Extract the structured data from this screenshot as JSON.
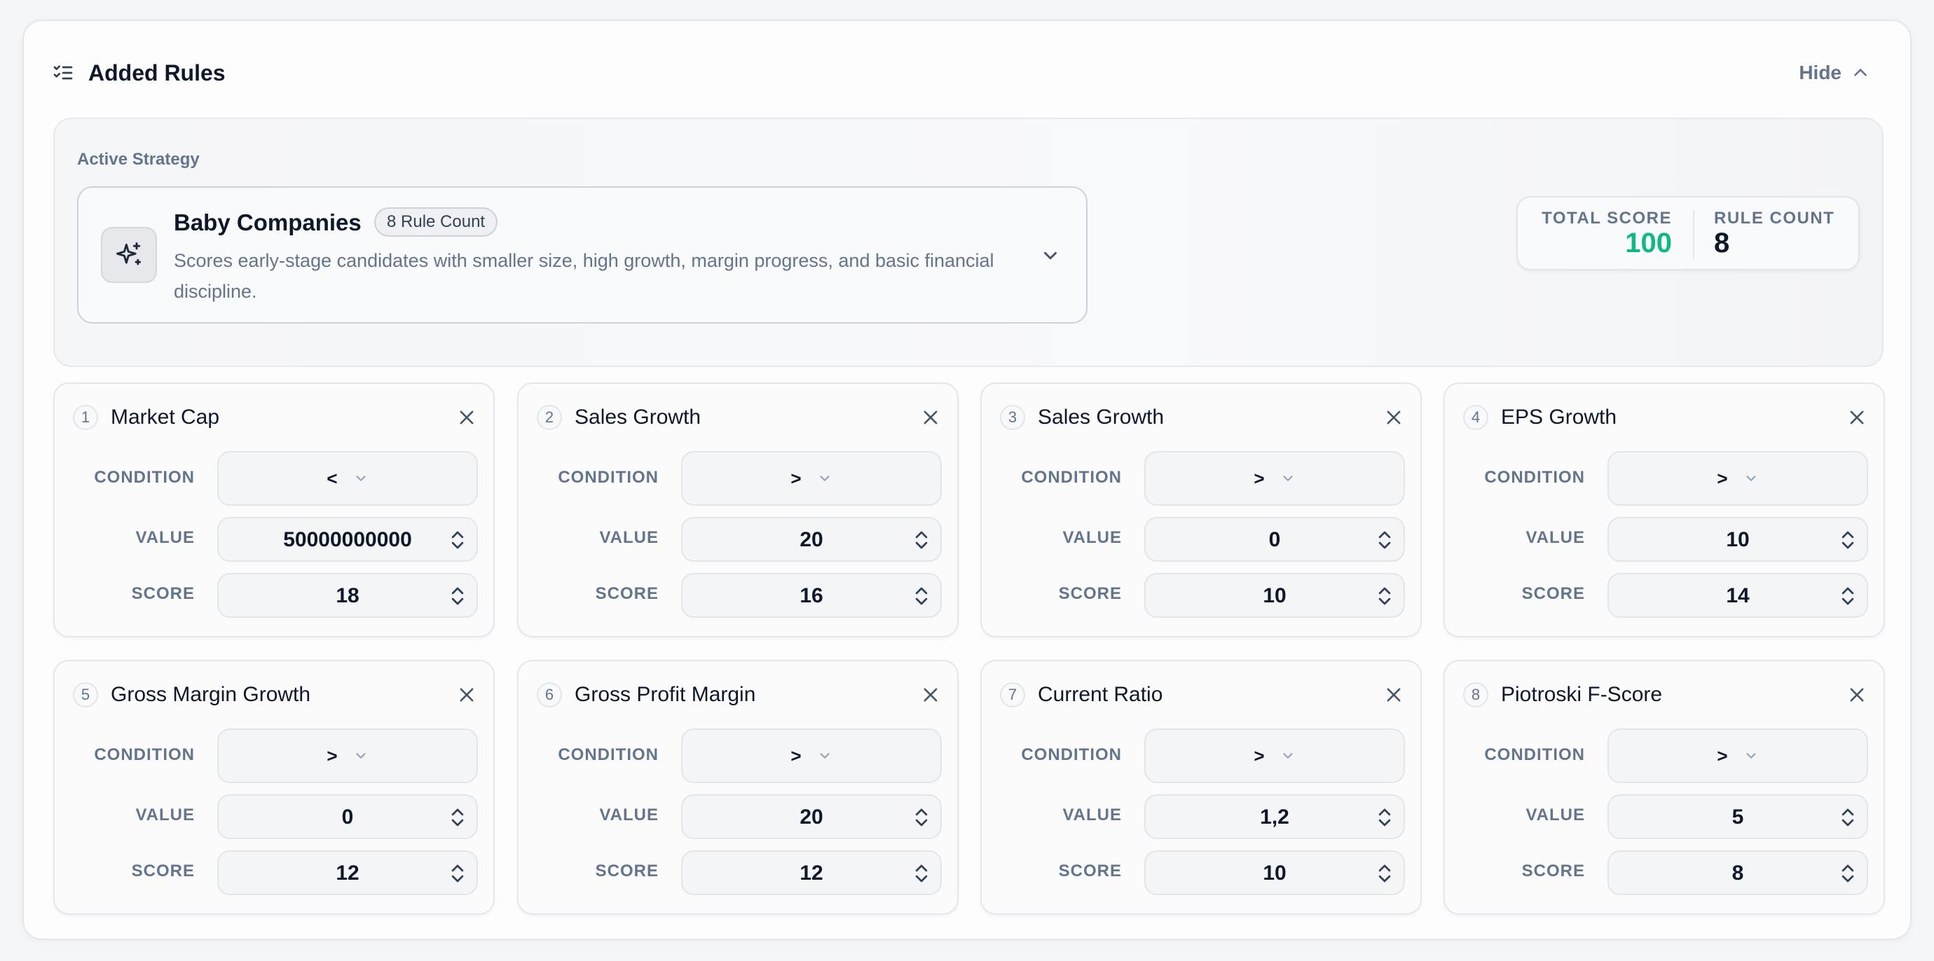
{
  "header": {
    "title": "Added Rules",
    "hide_label": "Hide"
  },
  "strategy": {
    "section_label": "Active Strategy",
    "name": "Baby Companies",
    "badge": "8 Rule Count",
    "description": "Scores early-stage candidates with smaller size, high growth, margin progress, and basic financial discipline."
  },
  "summary": {
    "total_score_label": "TOTAL SCORE",
    "total_score_value": "100",
    "rule_count_label": "RULE COUNT",
    "rule_count_value": "8"
  },
  "labels": {
    "condition": "CONDITION",
    "value": "VALUE",
    "score": "SCORE"
  },
  "rules": [
    {
      "num": "1",
      "name": "Market Cap",
      "condition": "<",
      "value": "50000000000",
      "score": "18"
    },
    {
      "num": "2",
      "name": "Sales Growth",
      "condition": ">",
      "value": "20",
      "score": "16"
    },
    {
      "num": "3",
      "name": "Sales Growth",
      "condition": ">",
      "value": "0",
      "score": "10"
    },
    {
      "num": "4",
      "name": "EPS Growth",
      "condition": ">",
      "value": "10",
      "score": "14"
    },
    {
      "num": "5",
      "name": "Gross Margin Growth",
      "condition": ">",
      "value": "0",
      "score": "12"
    },
    {
      "num": "6",
      "name": "Gross Profit Margin",
      "condition": ">",
      "value": "20",
      "score": "12"
    },
    {
      "num": "7",
      "name": "Current Ratio",
      "condition": ">",
      "value": "1,2",
      "score": "10"
    },
    {
      "num": "8",
      "name": "Piotroski F-Score",
      "condition": ">",
      "value": "5",
      "score": "8"
    }
  ],
  "colors": {
    "accent_green": "#10b981",
    "text_dark": "#0f172a",
    "text_muted": "#64748b"
  },
  "icons": {
    "header": "checklist-icon",
    "hide": "chevron-up-icon",
    "strategy": "sparkles-icon",
    "strategy_toggle": "chevron-down-icon",
    "remove": "close-icon",
    "condition": "chevron-down-icon",
    "stepper": "up-down-stepper-icon"
  }
}
